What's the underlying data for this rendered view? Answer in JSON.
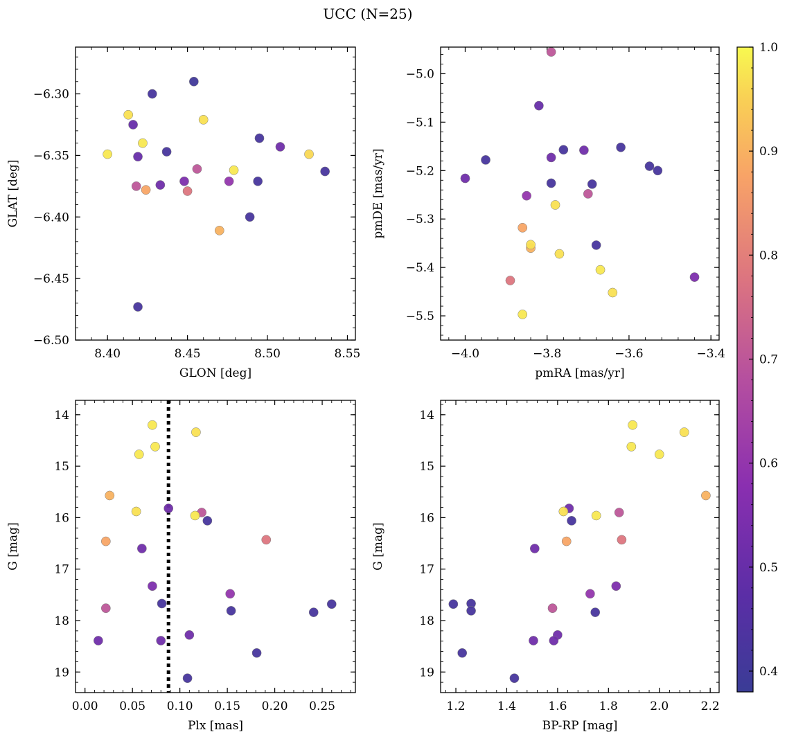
{
  "figure": {
    "title": "UCC (N=25)",
    "colorbar": {
      "ticks": [
        0.4,
        0.5,
        0.6,
        0.7,
        0.8,
        0.9,
        1.0
      ],
      "tick_labels": [
        "0.4",
        "0.5",
        "0.6",
        "0.7",
        "0.8",
        "0.9",
        "1.0"
      ],
      "range": [
        0.38,
        1.0
      ],
      "colormap": "plasma"
    }
  },
  "chart_data": [
    {
      "type": "scatter",
      "xlabel": "GLON [deg]",
      "ylabel": "GLAT [deg]",
      "xlim": [
        8.38,
        8.555
      ],
      "ylim": [
        -6.5,
        -6.262
      ],
      "xticks": [
        8.4,
        8.45,
        8.5,
        8.55
      ],
      "xtick_labels": [
        "8.40",
        "8.45",
        "8.50",
        "8.55"
      ],
      "yticks": [
        -6.5,
        -6.45,
        -6.4,
        -6.35,
        -6.3
      ],
      "ytick_labels": [
        "−6.50",
        "−6.45",
        "−6.40",
        "−6.35",
        "−6.30"
      ],
      "points": [
        {
          "x": 8.454,
          "y": -6.29,
          "c": 0.4
        },
        {
          "x": 8.428,
          "y": -6.3,
          "c": 0.42
        },
        {
          "x": 8.413,
          "y": -6.317,
          "c": 0.97
        },
        {
          "x": 8.416,
          "y": -6.325,
          "c": 0.5
        },
        {
          "x": 8.46,
          "y": -6.321,
          "c": 0.97
        },
        {
          "x": 8.422,
          "y": -6.34,
          "c": 0.98
        },
        {
          "x": 8.495,
          "y": -6.336,
          "c": 0.42
        },
        {
          "x": 8.508,
          "y": -6.343,
          "c": 0.52
        },
        {
          "x": 8.437,
          "y": -6.347,
          "c": 0.42
        },
        {
          "x": 8.4,
          "y": -6.349,
          "c": 0.98
        },
        {
          "x": 8.419,
          "y": -6.351,
          "c": 0.5
        },
        {
          "x": 8.526,
          "y": -6.349,
          "c": 0.96
        },
        {
          "x": 8.536,
          "y": -6.363,
          "c": 0.42
        },
        {
          "x": 8.456,
          "y": -6.361,
          "c": 0.7
        },
        {
          "x": 8.479,
          "y": -6.362,
          "c": 0.98
        },
        {
          "x": 8.448,
          "y": -6.371,
          "c": 0.55
        },
        {
          "x": 8.476,
          "y": -6.371,
          "c": 0.6
        },
        {
          "x": 8.494,
          "y": -6.371,
          "c": 0.42
        },
        {
          "x": 8.418,
          "y": -6.375,
          "c": 0.7
        },
        {
          "x": 8.433,
          "y": -6.374,
          "c": 0.52
        },
        {
          "x": 8.424,
          "y": -6.378,
          "c": 0.88
        },
        {
          "x": 8.45,
          "y": -6.379,
          "c": 0.78
        },
        {
          "x": 8.489,
          "y": -6.4,
          "c": 0.42
        },
        {
          "x": 8.47,
          "y": -6.411,
          "c": 0.9
        },
        {
          "x": 8.419,
          "y": -6.473,
          "c": 0.42
        }
      ]
    },
    {
      "type": "scatter",
      "xlabel": "pmRA [mas/yr]",
      "ylabel": "pmDE [mas/yr]",
      "xlim": [
        -4.06,
        -3.38
      ],
      "ylim": [
        -5.55,
        -4.945
      ],
      "xticks": [
        -4.0,
        -3.8,
        -3.6,
        -3.4
      ],
      "xtick_labels": [
        "−4.0",
        "−3.8",
        "−3.6",
        "−3.4"
      ],
      "yticks": [
        -5.5,
        -5.4,
        -5.3,
        -5.2,
        -5.1,
        -5.0
      ],
      "ytick_labels": [
        "−5.5",
        "−5.4",
        "−5.3",
        "−5.2",
        "−5.1",
        "−5.0"
      ],
      "points": [
        {
          "x": -3.79,
          "y": -4.955,
          "c": 0.7
        },
        {
          "x": -3.82,
          "y": -5.066,
          "c": 0.5
        },
        {
          "x": -4.0,
          "y": -5.216,
          "c": 0.52
        },
        {
          "x": -3.95,
          "y": -5.178,
          "c": 0.42
        },
        {
          "x": -3.76,
          "y": -5.157,
          "c": 0.42
        },
        {
          "x": -3.71,
          "y": -5.158,
          "c": 0.52
        },
        {
          "x": -3.62,
          "y": -5.152,
          "c": 0.42
        },
        {
          "x": -3.79,
          "y": -5.173,
          "c": 0.52
        },
        {
          "x": -3.55,
          "y": -5.191,
          "c": 0.42
        },
        {
          "x": -3.53,
          "y": -5.2,
          "c": 0.42
        },
        {
          "x": -3.79,
          "y": -5.226,
          "c": 0.42
        },
        {
          "x": -3.69,
          "y": -5.228,
          "c": 0.42
        },
        {
          "x": -3.85,
          "y": -5.252,
          "c": 0.6
        },
        {
          "x": -3.7,
          "y": -5.248,
          "c": 0.7
        },
        {
          "x": -3.78,
          "y": -5.271,
          "c": 0.97
        },
        {
          "x": -3.86,
          "y": -5.318,
          "c": 0.88
        },
        {
          "x": -3.84,
          "y": -5.36,
          "c": 0.9
        },
        {
          "x": -3.84,
          "y": -5.353,
          "c": 0.97
        },
        {
          "x": -3.68,
          "y": -5.354,
          "c": 0.42
        },
        {
          "x": -3.77,
          "y": -5.372,
          "c": 0.97
        },
        {
          "x": -3.67,
          "y": -5.405,
          "c": 0.98
        },
        {
          "x": -3.44,
          "y": -5.42,
          "c": 0.55
        },
        {
          "x": -3.89,
          "y": -5.427,
          "c": 0.78
        },
        {
          "x": -3.64,
          "y": -5.452,
          "c": 0.97
        },
        {
          "x": -3.86,
          "y": -5.497,
          "c": 0.98
        }
      ]
    },
    {
      "type": "scatter",
      "xlabel": "Plx [mas]",
      "ylabel": "G [mag]",
      "xlim": [
        -0.01,
        0.285
      ],
      "ylim": [
        19.4,
        13.72
      ],
      "xticks": [
        0.0,
        0.05,
        0.1,
        0.15,
        0.2,
        0.25
      ],
      "xtick_labels": [
        "0.00",
        "0.05",
        "0.10",
        "0.15",
        "0.20",
        "0.25"
      ],
      "yticks": [
        14,
        15,
        16,
        17,
        18,
        19
      ],
      "ytick_labels": [
        "14",
        "15",
        "16",
        "17",
        "18",
        "19"
      ],
      "vline": 0.088,
      "points": [
        {
          "x": 0.071,
          "y": 14.2,
          "c": 0.98
        },
        {
          "x": 0.117,
          "y": 14.34,
          "c": 0.97
        },
        {
          "x": 0.074,
          "y": 14.62,
          "c": 0.98
        },
        {
          "x": 0.057,
          "y": 14.77,
          "c": 0.98
        },
        {
          "x": 0.026,
          "y": 15.57,
          "c": 0.9
        },
        {
          "x": 0.054,
          "y": 15.88,
          "c": 0.97
        },
        {
          "x": 0.088,
          "y": 15.82,
          "c": 0.52
        },
        {
          "x": 0.123,
          "y": 15.9,
          "c": 0.7
        },
        {
          "x": 0.116,
          "y": 15.96,
          "c": 0.98
        },
        {
          "x": 0.129,
          "y": 16.06,
          "c": 0.42
        },
        {
          "x": 0.022,
          "y": 16.46,
          "c": 0.88
        },
        {
          "x": 0.191,
          "y": 16.43,
          "c": 0.78
        },
        {
          "x": 0.06,
          "y": 16.6,
          "c": 0.52
        },
        {
          "x": 0.071,
          "y": 17.33,
          "c": 0.55
        },
        {
          "x": 0.153,
          "y": 17.48,
          "c": 0.6
        },
        {
          "x": 0.081,
          "y": 17.67,
          "c": 0.42
        },
        {
          "x": 0.022,
          "y": 17.76,
          "c": 0.7
        },
        {
          "x": 0.154,
          "y": 17.81,
          "c": 0.42
        },
        {
          "x": 0.241,
          "y": 17.84,
          "c": 0.42
        },
        {
          "x": 0.26,
          "y": 17.68,
          "c": 0.42
        },
        {
          "x": 0.11,
          "y": 18.28,
          "c": 0.52
        },
        {
          "x": 0.014,
          "y": 18.39,
          "c": 0.52
        },
        {
          "x": 0.08,
          "y": 18.39,
          "c": 0.52
        },
        {
          "x": 0.181,
          "y": 18.63,
          "c": 0.42
        },
        {
          "x": 0.108,
          "y": 19.12,
          "c": 0.42
        }
      ]
    },
    {
      "type": "scatter",
      "xlabel": "BP-RP [mag]",
      "ylabel": "G [mag]",
      "xlim": [
        1.14,
        2.235
      ],
      "ylim": [
        19.4,
        13.72
      ],
      "xticks": [
        1.2,
        1.4,
        1.6,
        1.8,
        2.0,
        2.2
      ],
      "xtick_labels": [
        "1.2",
        "1.4",
        "1.6",
        "1.8",
        "2.0",
        "2.2"
      ],
      "yticks": [
        14,
        15,
        16,
        17,
        18,
        19
      ],
      "ytick_labels": [
        "14",
        "15",
        "16",
        "17",
        "18",
        "19"
      ],
      "points": [
        {
          "x": 1.895,
          "y": 14.2,
          "c": 0.98
        },
        {
          "x": 2.098,
          "y": 14.34,
          "c": 0.97
        },
        {
          "x": 1.89,
          "y": 14.62,
          "c": 0.98
        },
        {
          "x": 2.0,
          "y": 14.77,
          "c": 0.98
        },
        {
          "x": 2.183,
          "y": 15.57,
          "c": 0.9
        },
        {
          "x": 1.645,
          "y": 15.82,
          "c": 0.52
        },
        {
          "x": 1.623,
          "y": 15.88,
          "c": 0.97
        },
        {
          "x": 1.842,
          "y": 15.9,
          "c": 0.7
        },
        {
          "x": 1.752,
          "y": 15.96,
          "c": 0.98
        },
        {
          "x": 1.655,
          "y": 16.06,
          "c": 0.42
        },
        {
          "x": 1.635,
          "y": 16.46,
          "c": 0.88
        },
        {
          "x": 1.852,
          "y": 16.43,
          "c": 0.78
        },
        {
          "x": 1.51,
          "y": 16.6,
          "c": 0.52
        },
        {
          "x": 1.83,
          "y": 17.33,
          "c": 0.55
        },
        {
          "x": 1.728,
          "y": 17.48,
          "c": 0.6
        },
        {
          "x": 1.19,
          "y": 17.68,
          "c": 0.42
        },
        {
          "x": 1.26,
          "y": 17.67,
          "c": 0.42
        },
        {
          "x": 1.58,
          "y": 17.76,
          "c": 0.7
        },
        {
          "x": 1.26,
          "y": 17.81,
          "c": 0.42
        },
        {
          "x": 1.748,
          "y": 17.84,
          "c": 0.42
        },
        {
          "x": 1.6,
          "y": 18.28,
          "c": 0.52
        },
        {
          "x": 1.505,
          "y": 18.39,
          "c": 0.52
        },
        {
          "x": 1.585,
          "y": 18.39,
          "c": 0.52
        },
        {
          "x": 1.225,
          "y": 18.63,
          "c": 0.42
        },
        {
          "x": 1.43,
          "y": 19.12,
          "c": 0.42
        }
      ]
    }
  ]
}
